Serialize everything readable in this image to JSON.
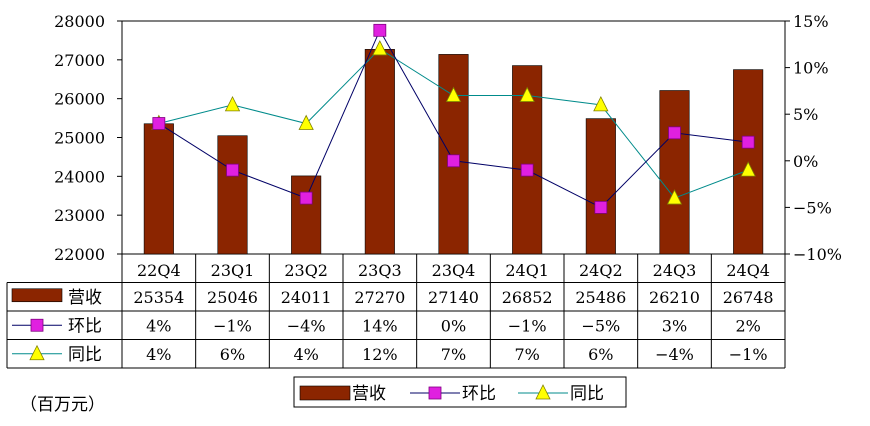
{
  "chart_data": {
    "type": "bar",
    "categories": [
      "22Q4",
      "23Q1",
      "23Q2",
      "23Q3",
      "23Q4",
      "24Q1",
      "24Q2",
      "24Q3",
      "24Q4"
    ],
    "series": [
      {
        "name": "营收",
        "kind": "bar",
        "axis": "left",
        "color": "#8B2500",
        "values": [
          25354,
          25046,
          24011,
          27270,
          27140,
          26852,
          25486,
          26210,
          26748
        ],
        "table_labels": [
          "25354",
          "25046",
          "24011",
          "27270",
          "27140",
          "26852",
          "25486",
          "26210",
          "26748"
        ]
      },
      {
        "name": "环比",
        "kind": "line",
        "axis": "right",
        "line_color": "#000066",
        "marker": "square",
        "marker_color": "#E020E0",
        "values": [
          4,
          -1,
          -4,
          14,
          0,
          -1,
          -5,
          3,
          2
        ],
        "table_labels": [
          "4%",
          "−1%",
          "−4%",
          "14%",
          "0%",
          "−1%",
          "−5%",
          "3%",
          "2%"
        ]
      },
      {
        "name": "同比",
        "kind": "line",
        "axis": "right",
        "line_color": "#008B8B",
        "marker": "triangle",
        "marker_color": "#FFFF00",
        "values": [
          4,
          6,
          4,
          12,
          7,
          7,
          6,
          -4,
          -1
        ],
        "table_labels": [
          "4%",
          "6%",
          "4%",
          "12%",
          "7%",
          "7%",
          "6%",
          "−4%",
          "−1%"
        ]
      }
    ],
    "left_axis": {
      "min": 22000,
      "max": 28000,
      "step": 1000,
      "tick_labels": [
        "22000",
        "23000",
        "24000",
        "25000",
        "26000",
        "27000",
        "28000"
      ]
    },
    "right_axis": {
      "min": -10,
      "max": 15,
      "step": 5,
      "tick_labels": [
        "−10%",
        "−5%",
        "0%",
        "5%",
        "10%",
        "15%"
      ]
    },
    "grid": false,
    "legend_position": "bottom",
    "unit_note": "（百万元）"
  }
}
